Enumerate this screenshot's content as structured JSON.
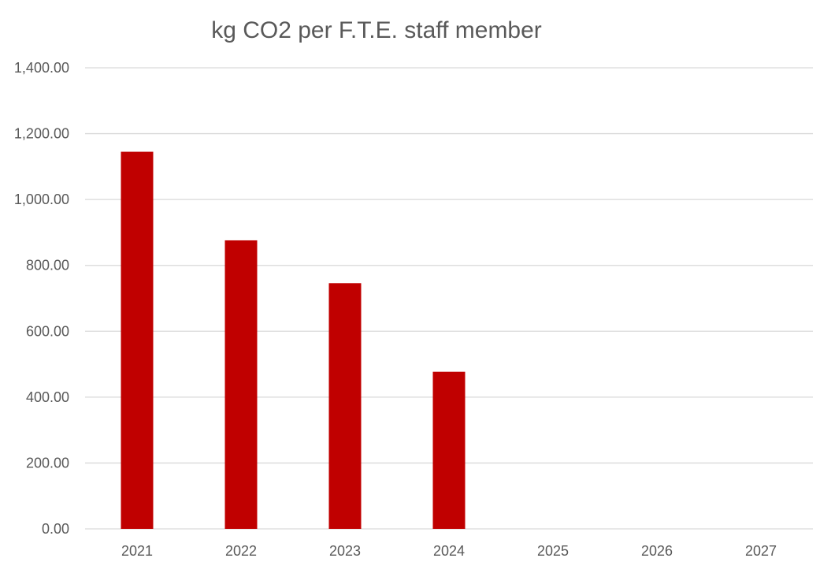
{
  "chart_data": {
    "type": "bar",
    "title": "kg CO2 per F.T.E. staff member",
    "xlabel": "",
    "ylabel": "",
    "categories": [
      "2021",
      "2022",
      "2023",
      "2024",
      "2025",
      "2026",
      "2027"
    ],
    "values": [
      1145,
      876,
      746,
      477,
      null,
      null,
      null
    ],
    "ylim": [
      0,
      1400
    ],
    "yticks": [
      "0.00",
      "200.00",
      "400.00",
      "600.00",
      "800.00",
      "1,000.00",
      "1,200.00",
      "1,400.00"
    ],
    "grid": true,
    "legend": "none",
    "bar_color": "#C00000",
    "grid_color": "#D9D9D9",
    "text_color": "#595959"
  }
}
